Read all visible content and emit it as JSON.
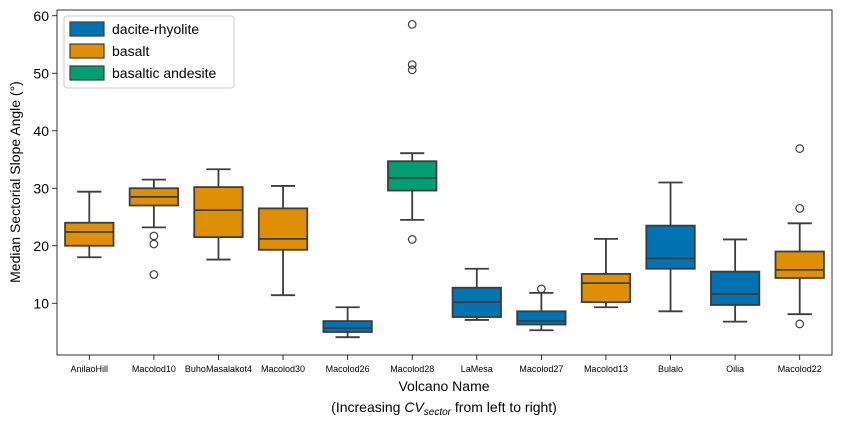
{
  "chart_data": {
    "type": "box",
    "title": "",
    "xlabel": "Volcano Name",
    "xlabel_line2_prefix": "(Increasing ",
    "xlabel_math_main": "CV",
    "xlabel_math_sub": "sector",
    "xlabel_line2_suffix": " from left to right)",
    "ylabel": "Median Sectorial Slope Angle (°)",
    "ylim": [
      1,
      61
    ],
    "yticks": [
      10,
      20,
      30,
      40,
      50,
      60
    ],
    "legend": [
      {
        "name": "dacite-rhyolite",
        "color": "#0173b2"
      },
      {
        "name": "basalt",
        "color": "#de8f05"
      },
      {
        "name": "basaltic andesite",
        "color": "#029e73"
      }
    ],
    "categories": [
      "AnilaoHill",
      "Macolod10",
      "BuhoMasalakot4",
      "Macolod30",
      "Macolod26",
      "Macolod28",
      "LaMesa",
      "Macolod27",
      "Macolod13",
      "Bulalo",
      "Oilia",
      "Macolod22"
    ],
    "boxes": [
      {
        "category": "AnilaoHill",
        "group": "basalt",
        "whisker_low": 18.0,
        "q1": 20.0,
        "median": 22.4,
        "q3": 24.0,
        "whisker_high": 29.4,
        "outliers": []
      },
      {
        "category": "Macolod10",
        "group": "basalt",
        "whisker_low": 23.2,
        "q1": 27.0,
        "median": 28.5,
        "q3": 30.0,
        "whisker_high": 31.5,
        "outliers": [
          21.7,
          20.3,
          15.0
        ]
      },
      {
        "category": "BuhoMasalakot4",
        "group": "basalt",
        "whisker_low": 17.6,
        "q1": 21.5,
        "median": 26.2,
        "q3": 30.2,
        "whisker_high": 33.3,
        "outliers": []
      },
      {
        "category": "Macolod30",
        "group": "basalt",
        "whisker_low": 11.4,
        "q1": 19.3,
        "median": 21.2,
        "q3": 26.5,
        "whisker_high": 30.4,
        "outliers": []
      },
      {
        "category": "Macolod26",
        "group": "dacite-rhyolite",
        "whisker_low": 4.1,
        "q1": 5.0,
        "median": 5.7,
        "q3": 6.9,
        "whisker_high": 9.3,
        "outliers": []
      },
      {
        "category": "Macolod28",
        "group": "basaltic andesite",
        "whisker_low": 24.5,
        "q1": 29.6,
        "median": 31.8,
        "q3": 34.7,
        "whisker_high": 36.1,
        "outliers": [
          21.1,
          50.6,
          51.5,
          58.5
        ]
      },
      {
        "category": "LaMesa",
        "group": "dacite-rhyolite",
        "whisker_low": 7.1,
        "q1": 7.6,
        "median": 10.2,
        "q3": 12.7,
        "whisker_high": 16.0,
        "outliers": []
      },
      {
        "category": "Macolod27",
        "group": "dacite-rhyolite",
        "whisker_low": 5.3,
        "q1": 6.3,
        "median": 6.9,
        "q3": 8.6,
        "whisker_high": 11.8,
        "outliers": [
          12.5
        ]
      },
      {
        "category": "Macolod13",
        "group": "basalt",
        "whisker_low": 9.3,
        "q1": 10.2,
        "median": 13.5,
        "q3": 15.1,
        "whisker_high": 21.2,
        "outliers": []
      },
      {
        "category": "Bulalo",
        "group": "dacite-rhyolite",
        "whisker_low": 8.6,
        "q1": 16.0,
        "median": 17.8,
        "q3": 23.5,
        "whisker_high": 31.0,
        "outliers": []
      },
      {
        "category": "Oilia",
        "group": "dacite-rhyolite",
        "whisker_low": 6.8,
        "q1": 9.7,
        "median": 11.6,
        "q3": 15.5,
        "whisker_high": 21.1,
        "outliers": []
      },
      {
        "category": "Macolod22",
        "group": "basalt",
        "whisker_low": 8.1,
        "q1": 14.4,
        "median": 15.8,
        "q3": 19.0,
        "whisker_high": 23.9,
        "outliers": [
          26.5,
          36.9,
          6.4
        ]
      }
    ]
  }
}
